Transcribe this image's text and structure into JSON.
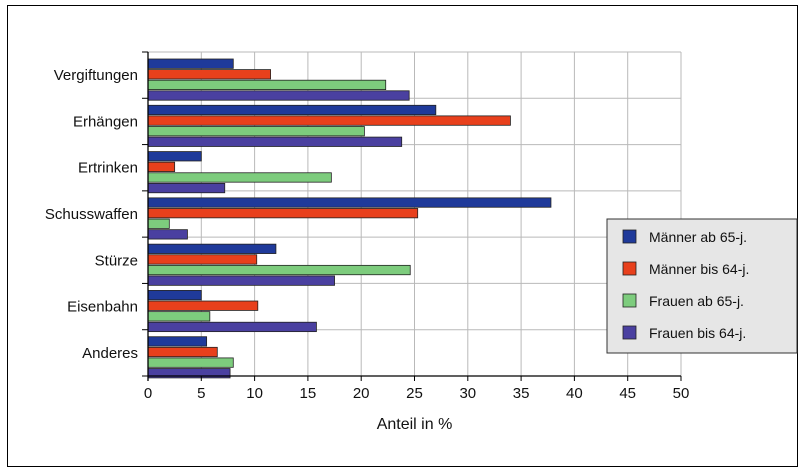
{
  "chart_data": {
    "type": "bar",
    "orientation": "horizontal",
    "categories": [
      "Vergiftungen",
      "Erhängen",
      "Ertrinken",
      "Schusswaffen",
      "Stürze",
      "Eisenbahn",
      "Anderes"
    ],
    "series": [
      {
        "name": "Männer ab 65-j.",
        "color": "#1f3a9a",
        "values": [
          8,
          27,
          5,
          37.8,
          12,
          5,
          5.5
        ]
      },
      {
        "name": "Männer bis 64-j.",
        "color": "#e8401c",
        "values": [
          11.5,
          34,
          2.5,
          25.3,
          10.2,
          10.3,
          6.5
        ]
      },
      {
        "name": "Frauen ab 65-j.",
        "color": "#7dcc7d",
        "values": [
          22.3,
          20.3,
          17.2,
          2,
          24.6,
          5.8,
          8
        ]
      },
      {
        "name": "Frauen bis 64-j.",
        "color": "#4a40a0",
        "values": [
          24.5,
          23.8,
          7.2,
          3.7,
          17.5,
          15.8,
          7.7
        ]
      }
    ],
    "xlabel": "Anteil in %",
    "xlim": [
      0,
      50
    ],
    "xticks": [
      0,
      5,
      10,
      15,
      20,
      25,
      30,
      35,
      40,
      45,
      50
    ],
    "grid": true,
    "legend_position": "right"
  }
}
